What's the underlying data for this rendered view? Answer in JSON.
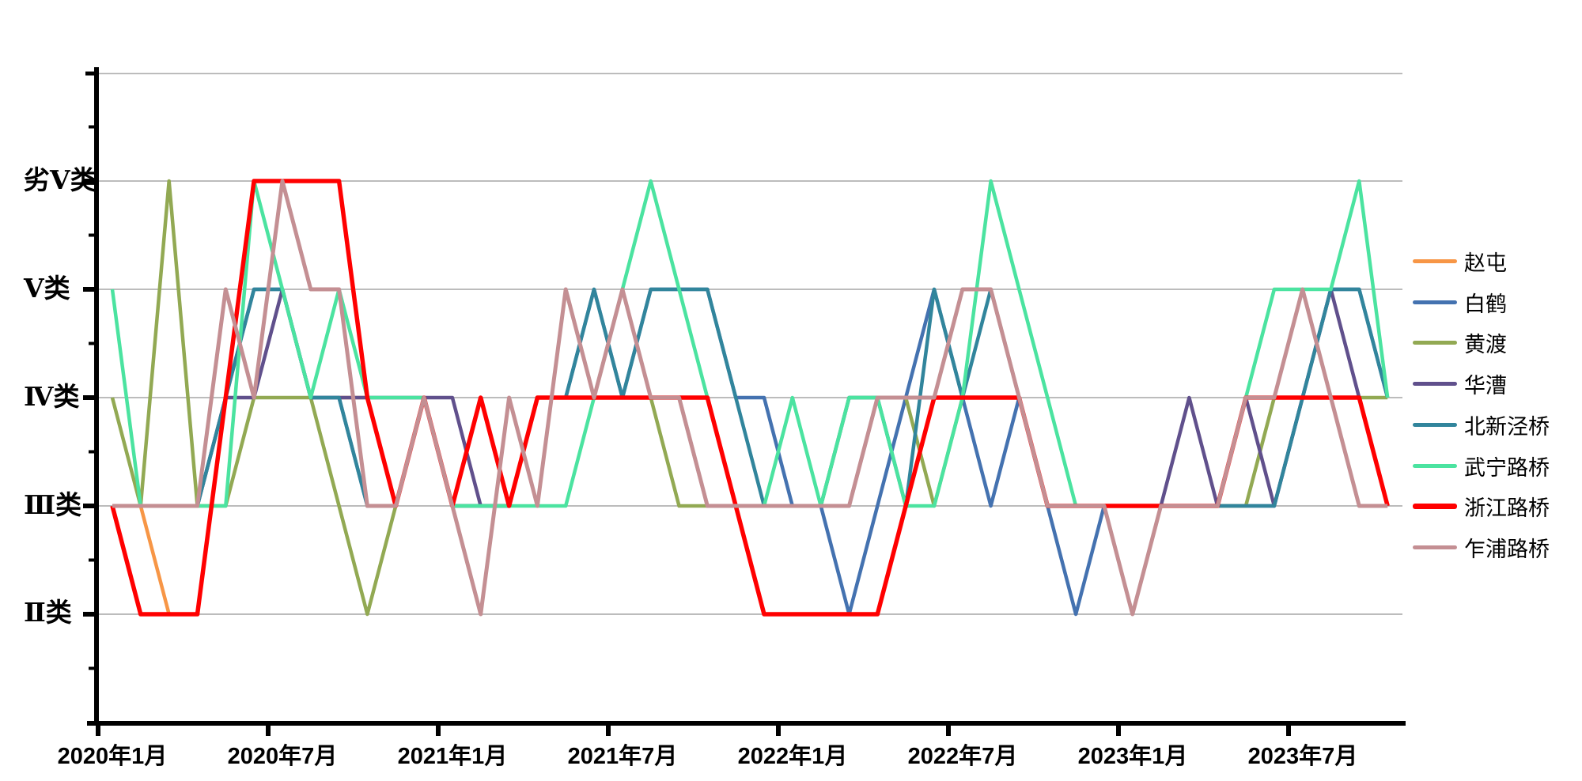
{
  "chart_data": {
    "type": "line",
    "title": "",
    "x": [
      "2020-01",
      "2020-02",
      "2020-03",
      "2020-04",
      "2020-05",
      "2020-06",
      "2020-07",
      "2020-08",
      "2020-09",
      "2020-10",
      "2020-11",
      "2020-12",
      "2021-01",
      "2021-02",
      "2021-03",
      "2021-04",
      "2021-05",
      "2021-06",
      "2021-07",
      "2021-08",
      "2021-09",
      "2021-10",
      "2021-11",
      "2021-12",
      "2022-01",
      "2022-02",
      "2022-03",
      "2022-04",
      "2022-05",
      "2022-06",
      "2022-07",
      "2022-08",
      "2022-09",
      "2022-10",
      "2022-11",
      "2022-12",
      "2023-01",
      "2023-02",
      "2023-03",
      "2023-04",
      "2023-05",
      "2023-06",
      "2023-07",
      "2023-08",
      "2023-09",
      "2023-10"
    ],
    "x_tick_labels": [
      "2020年1月",
      "2020年7月",
      "2021年1月",
      "2021年7月",
      "2022年1月",
      "2022年7月",
      "2023年1月",
      "2023年7月"
    ],
    "y_ticks": [
      {
        "value": 6,
        "label": "劣Ⅴ类"
      },
      {
        "value": 5,
        "label": "Ⅴ类"
      },
      {
        "value": 4,
        "label": "Ⅳ类"
      },
      {
        "value": 3,
        "label": "Ⅲ类"
      },
      {
        "value": 2,
        "label": "Ⅱ类"
      }
    ],
    "value_scale": {
      "2": "Ⅱ类",
      "3": "Ⅲ类",
      "4": "Ⅳ类",
      "5": "Ⅴ类",
      "6": "劣Ⅴ类"
    },
    "grid": true,
    "legend_position": "right",
    "series": [
      {
        "name": "赵屯",
        "id": "zhaotun",
        "color": "#F79646",
        "width": 4.5,
        "values": [
          3,
          3,
          2,
          2,
          null,
          null,
          null,
          null,
          4,
          4,
          null,
          null,
          null,
          null,
          null,
          null,
          null,
          null,
          null,
          null,
          null,
          null,
          null,
          null,
          null,
          null,
          null,
          null,
          null,
          null,
          null,
          null,
          null,
          null,
          null,
          null,
          null,
          null,
          null,
          null,
          null,
          null,
          null,
          null,
          null,
          null
        ]
      },
      {
        "name": "白鹤",
        "id": "baihe",
        "color": "#4472B0",
        "width": 4.5,
        "values": [
          3,
          3,
          3,
          3,
          4,
          5,
          5,
          4,
          4,
          3,
          3,
          4,
          3,
          3,
          3,
          4,
          4,
          5,
          4,
          5,
          5,
          5,
          4,
          4,
          3,
          3,
          2,
          3,
          4,
          5,
          4,
          3,
          4,
          3,
          2,
          3,
          3,
          3,
          3,
          3,
          3,
          3,
          4,
          5,
          5,
          4
        ]
      },
      {
        "name": "黄渡",
        "id": "huangdu",
        "color": "#92A953",
        "width": 4.5,
        "values": [
          4,
          3,
          6,
          3,
          3,
          4,
          4,
          4,
          3,
          2,
          3,
          4,
          3,
          3,
          3,
          4,
          4,
          4,
          4,
          4,
          3,
          3,
          3,
          3,
          3,
          3,
          4,
          4,
          4,
          3,
          4,
          4,
          4,
          3,
          3,
          3,
          3,
          3,
          3,
          3,
          3,
          4,
          4,
          4,
          4,
          4
        ]
      },
      {
        "name": "华漕",
        "id": "huacao",
        "color": "#60508C",
        "width": 4.5,
        "values": [
          3,
          3,
          3,
          3,
          4,
          4,
          5,
          4,
          4,
          4,
          4,
          4,
          4,
          3,
          3,
          4,
          4,
          4,
          4,
          4,
          4,
          3,
          3,
          3,
          3,
          3,
          3,
          4,
          4,
          4,
          4,
          4,
          4,
          3,
          3,
          3,
          3,
          3,
          4,
          3,
          4,
          3,
          4,
          5,
          4,
          3
        ]
      },
      {
        "name": "北新泾桥",
        "id": "beixinjing-bridge",
        "color": "#31859C",
        "width": 4.5,
        "values": [
          3,
          3,
          3,
          3,
          4,
          5,
          5,
          4,
          4,
          3,
          3,
          4,
          3,
          3,
          3,
          4,
          4,
          5,
          4,
          5,
          5,
          5,
          4,
          3,
          3,
          3,
          4,
          4,
          3,
          5,
          4,
          5,
          4,
          3,
          3,
          3,
          3,
          3,
          3,
          3,
          3,
          3,
          4,
          5,
          5,
          4
        ]
      },
      {
        "name": "武宁路桥",
        "id": "wuninglu-bridge",
        "color": "#4BE3A0",
        "width": 4.5,
        "values": [
          5,
          3,
          3,
          3,
          3,
          6,
          5,
          4,
          5,
          4,
          4,
          4,
          3,
          3,
          3,
          3,
          3,
          4,
          5,
          6,
          5,
          4,
          3,
          3,
          4,
          3,
          4,
          4,
          3,
          3,
          4,
          6,
          5,
          4,
          3,
          3,
          3,
          3,
          3,
          3,
          4,
          5,
          5,
          5,
          6,
          4
        ]
      },
      {
        "name": "浙江路桥",
        "id": "zhejianglu-bridge",
        "color": "#FF0000",
        "width": 5.5,
        "values": [
          3,
          2,
          2,
          2,
          4,
          6,
          6,
          6,
          6,
          4,
          3,
          4,
          3,
          4,
          3,
          4,
          4,
          4,
          4,
          4,
          4,
          4,
          3,
          2,
          2,
          2,
          2,
          2,
          3,
          4,
          4,
          4,
          4,
          3,
          3,
          3,
          3,
          3,
          3,
          3,
          4,
          4,
          4,
          4,
          4,
          3
        ]
      },
      {
        "name": "乍浦路桥",
        "id": "zhapulu-bridge",
        "color": "#C48F93",
        "width": 5,
        "values": [
          3,
          3,
          3,
          3,
          5,
          4,
          6,
          5,
          5,
          3,
          3,
          4,
          3,
          2,
          4,
          3,
          5,
          4,
          5,
          4,
          4,
          3,
          3,
          3,
          3,
          3,
          3,
          4,
          4,
          4,
          5,
          5,
          4,
          3,
          3,
          3,
          2,
          3,
          3,
          3,
          4,
          4,
          5,
          4,
          3,
          3
        ]
      }
    ],
    "axis": {
      "gridline_color": "#A6A6A6",
      "axis_color": "#000000",
      "ylim_categories": [
        2,
        6
      ],
      "x_range_months": 46
    }
  }
}
